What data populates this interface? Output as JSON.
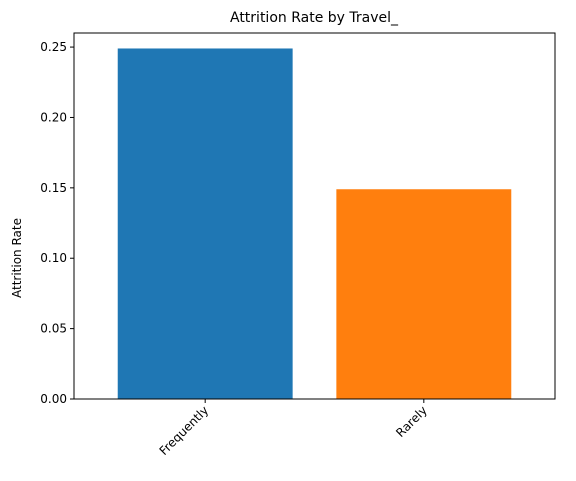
{
  "chart_data": {
    "type": "bar",
    "title": "Attrition Rate by Travel_",
    "xlabel": "",
    "ylabel": "Attrition Rate",
    "categories": [
      "Frequently",
      "Rarely"
    ],
    "values": [
      0.249,
      0.149
    ],
    "colors": [
      "#1f77b4",
      "#ff7f0e"
    ],
    "ylim": [
      0,
      0.26
    ],
    "yticks": [
      0.0,
      0.05,
      0.1,
      0.15,
      0.2,
      0.25
    ],
    "ytick_labels": [
      "0.00",
      "0.05",
      "0.10",
      "0.15",
      "0.20",
      "0.25"
    ],
    "xtick_rotation_deg": 45,
    "grid": false,
    "legend": "none"
  }
}
